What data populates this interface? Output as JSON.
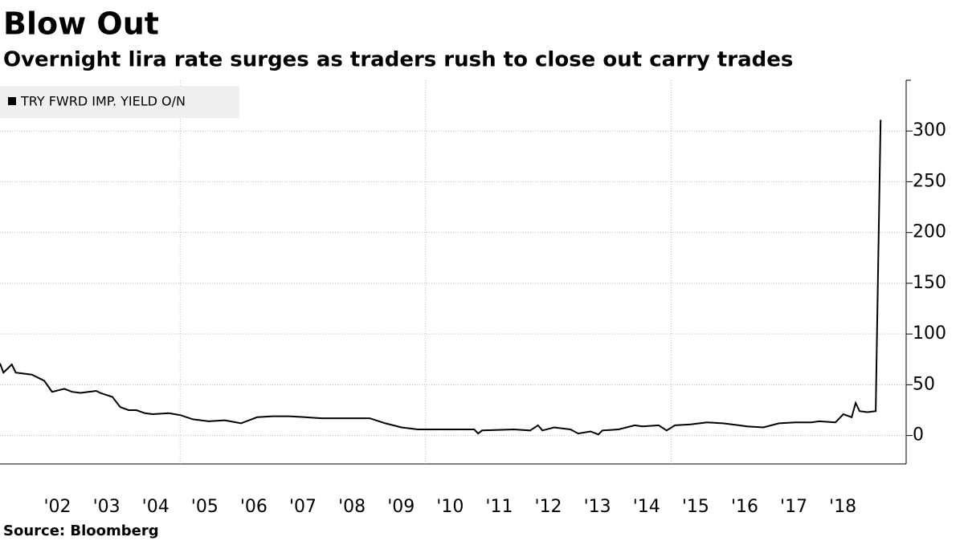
{
  "chart_data": {
    "type": "line",
    "title": "Blow Out",
    "subtitle": "Overnight lira rate surges as traders rush to close out carry trades",
    "source": "Source: Bloomberg",
    "series": [
      {
        "name": "TRY FWRD IMP. YIELD O/N",
        "color": "#000000",
        "x": [
          2001.33,
          2001.4,
          2001.57,
          2001.65,
          2001.98,
          2002.06,
          2002.23,
          2002.39,
          2002.64,
          2002.8,
          2002.97,
          2003.29,
          2003.37,
          2003.62,
          2003.78,
          2003.95,
          2004.11,
          2004.28,
          2004.44,
          2004.77,
          2005.01,
          2005.26,
          2005.58,
          2005.91,
          2006.24,
          2006.57,
          2006.89,
          2007.22,
          2007.55,
          2007.88,
          2008.2,
          2008.53,
          2008.86,
          2009.18,
          2009.51,
          2009.84,
          2010.49,
          2010.99,
          2011.07,
          2011.15,
          2011.8,
          2012.13,
          2012.29,
          2012.38,
          2012.62,
          2012.95,
          2013.11,
          2013.36,
          2013.52,
          2013.6,
          2013.93,
          2014.26,
          2014.42,
          2014.75,
          2014.91,
          2015.08,
          2015.4,
          2015.73,
          2016.06,
          2016.39,
          2016.55,
          2016.88,
          2017.2,
          2017.53,
          2017.86,
          2018.02,
          2018.35,
          2018.51,
          2018.68,
          2018.76,
          2018.84,
          2019.0,
          2019.17,
          2019.27
        ],
        "values": [
          71,
          62,
          70,
          62,
          60,
          58,
          54,
          43,
          46,
          43,
          42,
          44,
          42,
          38,
          28,
          25,
          25,
          22,
          21,
          22,
          20,
          16,
          14,
          15,
          12,
          18,
          19,
          19,
          18,
          17,
          17,
          17,
          17,
          12,
          8,
          6,
          6,
          6,
          2,
          5,
          6,
          5,
          10,
          5,
          8,
          6,
          2,
          4,
          1,
          5,
          6,
          10,
          9,
          10,
          5,
          10,
          11,
          13,
          12,
          10,
          9,
          8,
          12,
          13,
          13,
          14,
          13,
          21,
          18,
          32,
          24,
          23,
          24,
          311
        ]
      }
    ],
    "xlim": [
      2001.33,
      2019.79
    ],
    "xticks": [
      {
        "value": 2002.5,
        "label": "'02"
      },
      {
        "value": 2003.5,
        "label": "'03"
      },
      {
        "value": 2004.5,
        "label": "'04"
      },
      {
        "value": 2005.5,
        "label": "'05"
      },
      {
        "value": 2006.5,
        "label": "'06"
      },
      {
        "value": 2007.5,
        "label": "'07"
      },
      {
        "value": 2008.5,
        "label": "'08"
      },
      {
        "value": 2009.5,
        "label": "'09"
      },
      {
        "value": 2010.5,
        "label": "'10"
      },
      {
        "value": 2011.5,
        "label": "'11"
      },
      {
        "value": 2012.5,
        "label": "'12"
      },
      {
        "value": 2013.5,
        "label": "'13"
      },
      {
        "value": 2014.5,
        "label": "'14"
      },
      {
        "value": 2015.5,
        "label": "'15"
      },
      {
        "value": 2016.5,
        "label": "'16"
      },
      {
        "value": 2017.5,
        "label": "'17"
      },
      {
        "value": 2018.5,
        "label": "'18"
      }
    ],
    "xgrid": [
      2005,
      2010,
      2015
    ],
    "ylim": [
      -28,
      350
    ],
    "yticks": [
      0,
      50,
      100,
      150,
      200,
      250,
      300
    ],
    "grid": true
  }
}
